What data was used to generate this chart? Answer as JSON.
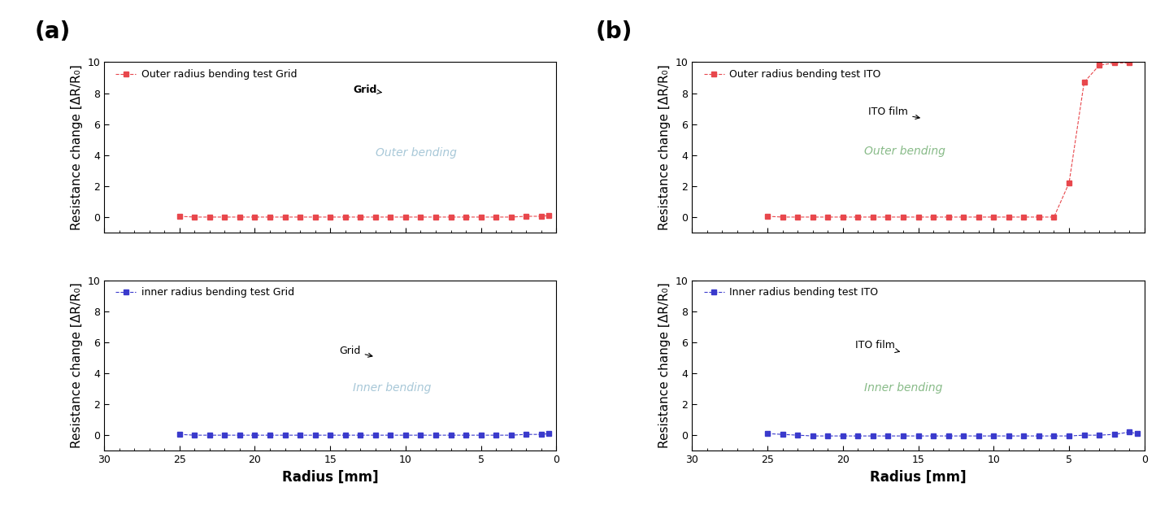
{
  "panel_a_label": "(a)",
  "panel_b_label": "(b)",
  "xlabel": "Radius [mm]",
  "ylabel": "Resistance change [ΔR/R₀]",
  "xlim": [
    30,
    0
  ],
  "ylim": [
    -1,
    10
  ],
  "ylim_display": [
    0,
    10
  ],
  "xticks": [
    30,
    25,
    20,
    15,
    10,
    5,
    0
  ],
  "yticks": [
    0,
    2,
    4,
    6,
    8,
    10
  ],
  "grid_outer_x": [
    25,
    24,
    23,
    22,
    21,
    20,
    19,
    18,
    17,
    16,
    15,
    14,
    13,
    12,
    11,
    10,
    9,
    8,
    7,
    6,
    5,
    4,
    3,
    2,
    1,
    0.5
  ],
  "grid_outer_y": [
    0.05,
    0.0,
    0.0,
    0.0,
    0.0,
    0.0,
    0.0,
    0.0,
    0.0,
    0.0,
    0.0,
    0.0,
    0.0,
    0.0,
    0.0,
    0.0,
    0.0,
    0.0,
    0.0,
    0.0,
    0.0,
    0.0,
    0.0,
    0.05,
    0.05,
    0.1
  ],
  "grid_inner_x": [
    25,
    24,
    23,
    22,
    21,
    20,
    19,
    18,
    17,
    16,
    15,
    14,
    13,
    12,
    11,
    10,
    9,
    8,
    7,
    6,
    5,
    4,
    3,
    2,
    1,
    0.5
  ],
  "grid_inner_y": [
    0.05,
    0.0,
    0.0,
    0.0,
    0.0,
    0.0,
    0.0,
    0.0,
    0.0,
    0.0,
    0.0,
    0.0,
    0.0,
    0.0,
    0.0,
    0.0,
    0.0,
    0.0,
    0.0,
    0.0,
    0.0,
    0.0,
    0.0,
    0.05,
    0.05,
    0.1
  ],
  "ito_outer_x": [
    25,
    24,
    23,
    22,
    21,
    20,
    19,
    18,
    17,
    16,
    15,
    14,
    13,
    12,
    11,
    10,
    9,
    8,
    7,
    6,
    5,
    4,
    3,
    2,
    1
  ],
  "ito_outer_y": [
    0.05,
    0.0,
    0.0,
    0.0,
    0.0,
    0.0,
    0.0,
    0.0,
    0.0,
    0.0,
    0.0,
    0.0,
    0.0,
    0.0,
    0.0,
    0.0,
    0.0,
    0.0,
    0.0,
    0.0,
    2.2,
    8.7,
    9.8,
    9.95,
    9.95
  ],
  "ito_inner_x": [
    25,
    24,
    23,
    22,
    21,
    20,
    19,
    18,
    17,
    16,
    15,
    14,
    13,
    12,
    11,
    10,
    9,
    8,
    7,
    6,
    5,
    4,
    3,
    2,
    1,
    0.5
  ],
  "ito_inner_y": [
    0.1,
    0.05,
    0.0,
    -0.05,
    -0.05,
    -0.05,
    -0.05,
    -0.05,
    -0.05,
    -0.05,
    -0.05,
    -0.05,
    -0.05,
    -0.05,
    -0.05,
    -0.05,
    -0.05,
    -0.05,
    -0.05,
    -0.05,
    -0.05,
    0.0,
    0.0,
    0.05,
    0.2,
    0.1
  ],
  "grid_outer_label": "Outer radius bending test Grid",
  "grid_inner_label": "inner radius bending test Grid",
  "ito_outer_label": "Outer radius bending test ITO",
  "ito_inner_label": "Inner radius bending test ITO",
  "color_red": "#e8474c",
  "color_blue": "#3a3acc",
  "outer_bending_text_a": "Outer bending",
  "inner_bending_text_a": "Inner bending",
  "outer_bending_text_b": "Outer bending",
  "inner_bending_text_b": "Inner bending",
  "grid_annotation_outer": "Grid",
  "grid_annotation_inner": "Grid",
  "ito_annotation_outer": "ITO film",
  "ito_annotation_inner": "ITO film",
  "bg_color": "#ffffff",
  "spine_color": "#000000",
  "tick_color": "#000000",
  "label_fontsize": 11,
  "legend_fontsize": 9,
  "annotation_fontsize": 9,
  "bending_text_color_a": "#a8c8d8",
  "bending_text_color_b": "#88bb88"
}
